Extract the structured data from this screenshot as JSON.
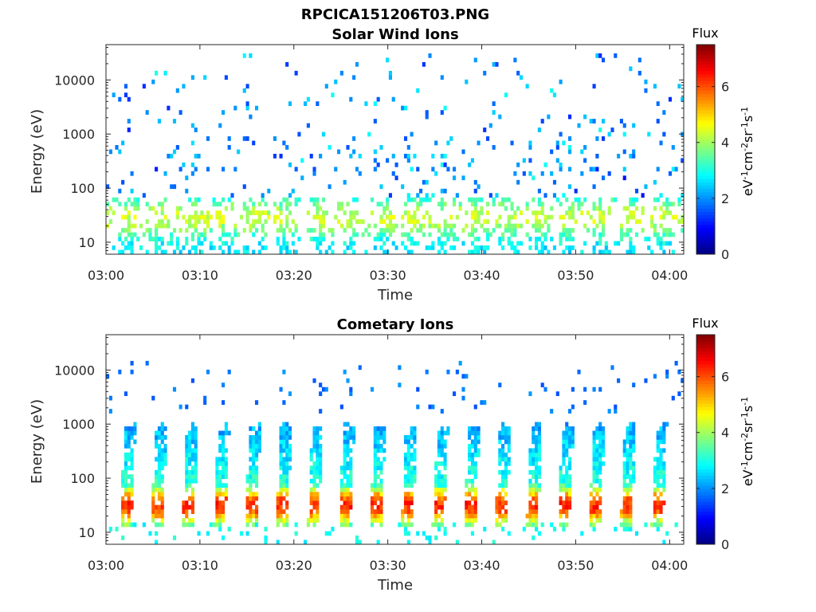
{
  "figure_title": "RPCICA151206T03.PNG",
  "chart_data": [
    {
      "type": "heatmap",
      "title": "Solar Wind Ions",
      "xlabel": "Time",
      "ylabel": "Energy (eV)",
      "y_scale": "log",
      "ylim": [
        6,
        45000
      ],
      "xlim_minutes": [
        0,
        61.5
      ],
      "x_ticks": [
        "03:00",
        "03:10",
        "03:20",
        "03:30",
        "03:40",
        "03:50",
        "04:00"
      ],
      "y_ticks": [
        "10",
        "100",
        "1000",
        "10000"
      ],
      "colorbar": {
        "title": "Flux",
        "label": "eV-1cm-2sr-1s-1",
        "range": [
          0,
          7.5
        ],
        "ticks": [
          "0",
          "2",
          "4",
          "6"
        ],
        "colormap": "jet"
      },
      "pattern": {
        "kind": "sparse",
        "sweep_period_minutes": 3.33,
        "peak_energy_eV": 30,
        "peak_flux": 4.3,
        "max_energy_eV": 30000
      }
    },
    {
      "type": "heatmap",
      "title": "Cometary Ions",
      "xlabel": "Time",
      "ylabel": "Energy (eV)",
      "y_scale": "log",
      "ylim": [
        6,
        45000
      ],
      "xlim_minutes": [
        0,
        61.5
      ],
      "x_ticks": [
        "03:00",
        "03:10",
        "03:20",
        "03:30",
        "03:40",
        "03:50",
        "04:00"
      ],
      "y_ticks": [
        "10",
        "100",
        "1000",
        "10000"
      ],
      "colorbar": {
        "title": "Flux",
        "label": "eV-1cm-2sr-1s-1",
        "range": [
          0,
          7.5
        ],
        "ticks": [
          "0",
          "2",
          "4",
          "6"
        ],
        "colormap": "jet"
      },
      "pattern": {
        "kind": "banded",
        "sweep_period_minutes": 3.33,
        "band_energy_range_eV": [
          12,
          900
        ],
        "peak_energy_eV": 30,
        "peak_flux": 6.3,
        "scatter_energy_range_eV": [
          1500,
          14000
        ]
      }
    }
  ]
}
